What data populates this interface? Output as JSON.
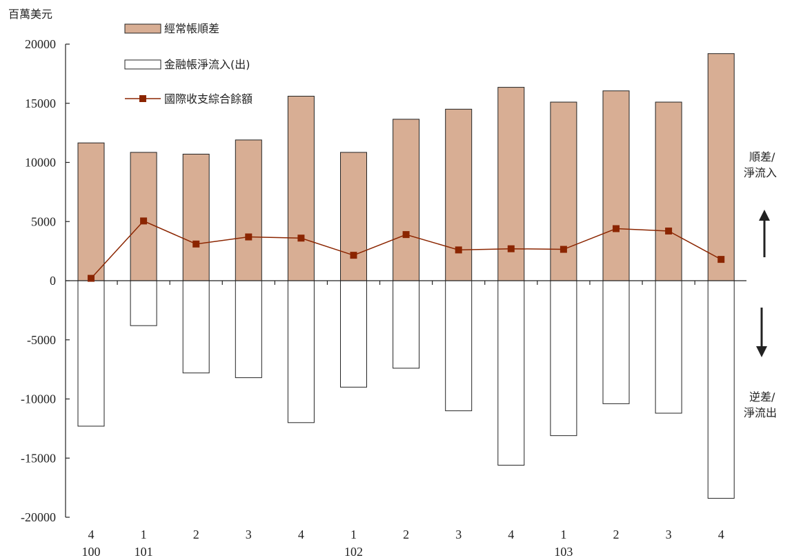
{
  "chart_data": {
    "type": "bar",
    "unit_label": "百萬美元",
    "categories": [
      "4",
      "1",
      "2",
      "3",
      "4",
      "1",
      "2",
      "3",
      "4",
      "1",
      "2",
      "3",
      "4"
    ],
    "year_labels": [
      {
        "index": 0,
        "label": "100"
      },
      {
        "index": 1,
        "label": "101"
      },
      {
        "index": 5,
        "label": "102"
      },
      {
        "index": 9,
        "label": "103"
      }
    ],
    "ylim": [
      -20000,
      20000
    ],
    "yticks": [
      20000,
      15000,
      10000,
      5000,
      0,
      -5000,
      -10000,
      -15000,
      -20000
    ],
    "series": [
      {
        "name": "經常帳順差",
        "kind": "bar",
        "color": "#d8ae94",
        "values": [
          11650,
          10850,
          10700,
          11900,
          15600,
          10850,
          13650,
          14500,
          16350,
          15100,
          16050,
          15100,
          19200
        ]
      },
      {
        "name": "金融帳淨流入(出)",
        "kind": "bar",
        "color": "#ffffff",
        "values": [
          -12300,
          -3800,
          -7800,
          -8200,
          -12000,
          -9000,
          -7400,
          -11000,
          -15600,
          -13100,
          -10400,
          -11200,
          -18400
        ]
      },
      {
        "name": "國際收支綜合餘額",
        "kind": "line",
        "color": "#8b2500",
        "values": [
          200,
          5050,
          3100,
          3700,
          3600,
          2150,
          3900,
          2600,
          2700,
          2650,
          4400,
          4200,
          1800
        ]
      }
    ],
    "side_labels": {
      "top": [
        "順差/",
        "淨流入"
      ],
      "bottom": [
        "逆差/",
        "淨流出"
      ]
    },
    "legend_position": "top-left"
  }
}
